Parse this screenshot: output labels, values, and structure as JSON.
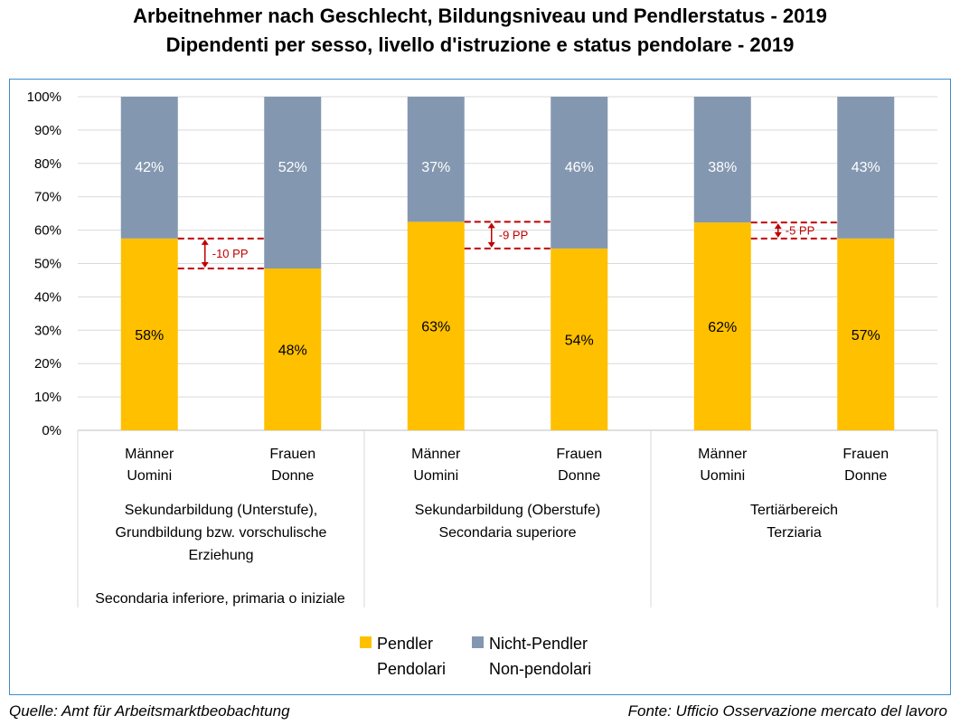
{
  "title_de": "Arbeitnehmer nach Geschlecht, Bildungsniveau und Pendlerstatus - 2019",
  "title_it": "Dipendenti per sesso, livello d'istruzione e status pendolare - 2019",
  "footer": {
    "left": "Quelle: Amt für Arbeitsmarktbeobachtung",
    "right": "Fonte: Ufficio Osservazione mercato del lavoro"
  },
  "legend": [
    {
      "line1": "Pendler",
      "line2": "Pendolari",
      "color": "#ffc000"
    },
    {
      "line1": "Nicht-Pendler",
      "line2": "Non-pendolari",
      "color": "#8497b0"
    }
  ],
  "chart_data": {
    "type": "bar",
    "stacked": true,
    "ylim": [
      0,
      100
    ],
    "y_ticks": [
      "0%",
      "10%",
      "20%",
      "30%",
      "40%",
      "50%",
      "60%",
      "70%",
      "80%",
      "90%",
      "100%"
    ],
    "grid": true,
    "legend_position": "bottom",
    "categories": [
      {
        "line1": "Männer",
        "line2": "Uomini"
      },
      {
        "line1": "Frauen",
        "line2": "Donne"
      },
      {
        "line1": "Männer",
        "line2": "Uomini"
      },
      {
        "line1": "Frauen",
        "line2": "Donne"
      },
      {
        "line1": "Männer",
        "line2": "Uomini"
      },
      {
        "line1": "Frauen",
        "line2": "Donne"
      }
    ],
    "groups": [
      {
        "lines": [
          "Sekundarbildung (Unterstufe),",
          "Grundbildung bzw. vorschulische",
          "Erziehung"
        ],
        "note": "Secondaria inferiore, primaria o iniziale"
      },
      {
        "lines": [
          "Sekundarbildung (Oberstufe)",
          "Secondaria superiore"
        ],
        "note": ""
      },
      {
        "lines": [
          "Tertiärbereich",
          "Terziaria"
        ],
        "note": ""
      }
    ],
    "series": [
      {
        "name": "Pendler / Pendolari",
        "color": "#ffc000",
        "values": [
          57.5,
          48.5,
          62.5,
          54.5,
          62.3,
          57.5
        ],
        "labels": [
          "58%",
          "48%",
          "63%",
          "54%",
          "62%",
          "57%"
        ]
      },
      {
        "name": "Nicht-Pendler / Non-pendolari",
        "color": "#8497b0",
        "values": [
          42.5,
          51.5,
          37.5,
          45.5,
          37.7,
          42.5
        ],
        "labels": [
          "42%",
          "52%",
          "37%",
          "46%",
          "38%",
          "43%"
        ]
      }
    ],
    "differences": [
      {
        "label": "-10 PP",
        "from": 57.5,
        "to": 48.5
      },
      {
        "label": "-9 PP",
        "from": 62.5,
        "to": 54.5
      },
      {
        "label": "-5 PP",
        "from": 62.3,
        "to": 57.5
      }
    ],
    "difference_color": "#c00000"
  }
}
